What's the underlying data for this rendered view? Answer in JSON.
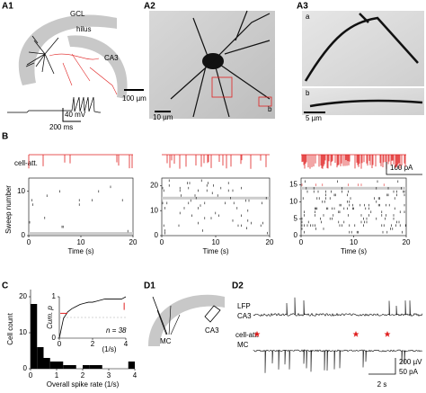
{
  "panels": {
    "a1": {
      "label": "A1",
      "regions": [
        "GCL",
        "hilus",
        "CA3"
      ],
      "scale_bar": "100 µm",
      "trace_scale": [
        "40 mV",
        "200 ms"
      ]
    },
    "a2": {
      "label": "A2",
      "scale_bar": "10 µm",
      "inset": "b"
    },
    "a3": {
      "label": "A3",
      "sublabels": [
        "a",
        "b"
      ],
      "scale_bar": "5 µm"
    },
    "b": {
      "label": "B",
      "trace_label": "cell-att.",
      "current_scale": "100 pA",
      "y_title": "Sweep number",
      "x_title": "Time (s)",
      "rasters": [
        {
          "xlim": [
            0,
            20
          ],
          "xticks": [
            0,
            10,
            20
          ],
          "ylim": [
            0,
            13
          ],
          "yticks": [
            0,
            10
          ]
        },
        {
          "xlim": [
            0,
            20
          ],
          "xticks": [
            0,
            10,
            20
          ],
          "ylim": [
            0,
            23
          ],
          "yticks": [
            0,
            10,
            20
          ]
        },
        {
          "xlim": [
            0,
            20
          ],
          "xticks": [
            0,
            10,
            20
          ],
          "ylim": [
            0,
            17
          ],
          "yticks": [
            0,
            5,
            10,
            15
          ]
        }
      ]
    },
    "c": {
      "label": "C",
      "y_title": "Cell count",
      "x_title": "Overall spike rate (1/s)",
      "bins": [
        0,
        0.25,
        0.5,
        0.75,
        1,
        1.25,
        1.5,
        1.75,
        2,
        2.25,
        2.5,
        2.75,
        3,
        3.25,
        3.5,
        3.75,
        4
      ],
      "counts": [
        18,
        6,
        3,
        2,
        2,
        1,
        1,
        0,
        1,
        1,
        1,
        0,
        0,
        0,
        0,
        2
      ],
      "xlim": [
        0,
        4
      ],
      "xticks": [
        0,
        1,
        2,
        3,
        4
      ],
      "ylim": [
        0,
        22
      ],
      "yticks": [
        0,
        10,
        20
      ],
      "inset": {
        "y_title": "Cum. p",
        "xlim": [
          0,
          4
        ],
        "xticks": [
          0,
          2,
          4
        ],
        "x_unit": "(1/s)",
        "ylim": [
          0,
          1
        ],
        "yticks": [
          0,
          1
        ],
        "n_label": "n = 38"
      }
    },
    "d1": {
      "label": "D1",
      "cell": "MC",
      "region": "CA3"
    },
    "d2": {
      "label": "D2",
      "lfp_labels": [
        "LFP",
        "CA3"
      ],
      "cell_labels": [
        "cell-att.",
        "MC"
      ],
      "time_scale": "2 s",
      "amp_scales": [
        "200 µV",
        "50 pA"
      ]
    }
  }
}
